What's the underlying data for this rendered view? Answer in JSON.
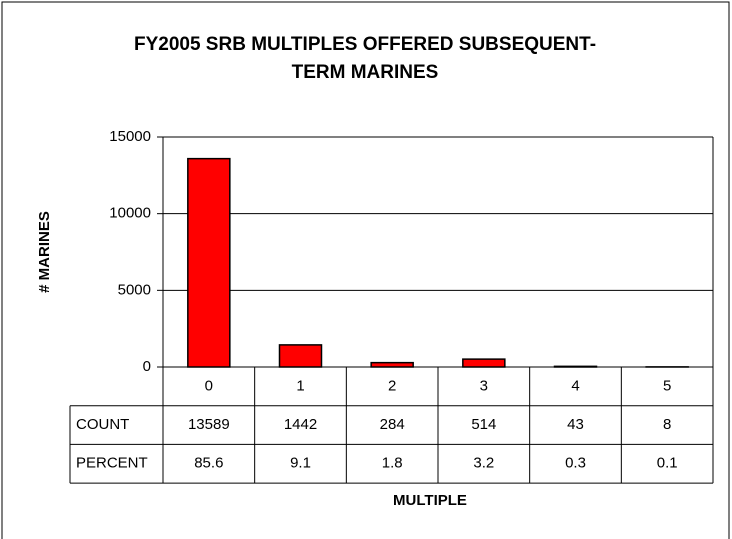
{
  "chart_data": {
    "type": "bar",
    "title": [
      "FY2005 SRB MULTIPLES OFFERED SUBSEQUENT-",
      "TERM MARINES"
    ],
    "x_label": "MULTIPLE",
    "y_label": "# MARINES",
    "categories": [
      "0",
      "1",
      "2",
      "3",
      "4",
      "5"
    ],
    "series": [
      {
        "name": "COUNT",
        "color": "#ff0000",
        "values": [
          13589,
          1442,
          284,
          514,
          43,
          8
        ]
      }
    ],
    "percent": {
      "name": "PERCENT",
      "values": [
        85.6,
        9.1,
        1.8,
        3.2,
        0.3,
        0.1
      ]
    },
    "ylim": [
      0,
      15000
    ],
    "yticks": [
      0,
      5000,
      10000,
      15000
    ],
    "grid": true
  }
}
